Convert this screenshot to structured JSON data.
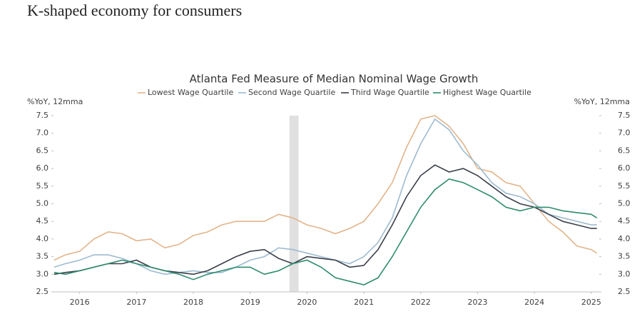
{
  "heading": "K-shaped economy for consumers",
  "chart_data": {
    "type": "line",
    "title": "Atlanta Fed Measure of Median Nominal Wage Growth",
    "ylabel": "%YoY, 12mma",
    "y2label": "%YoY, 12mma",
    "x": [
      2016.05,
      2016.25,
      2016.5,
      2016.75,
      2017.0,
      2017.25,
      2017.5,
      2017.75,
      2018.0,
      2018.25,
      2018.5,
      2018.75,
      2019.0,
      2019.25,
      2019.5,
      2019.75,
      2020.0,
      2020.25,
      2020.5,
      2020.75,
      2021.0,
      2021.25,
      2021.5,
      2021.75,
      2022.0,
      2022.25,
      2022.5,
      2022.75,
      2023.0,
      2023.25,
      2023.5,
      2023.75,
      2024.0,
      2024.25,
      2024.5,
      2024.75,
      2025.0,
      2025.25,
      2025.5,
      2025.6
    ],
    "series": [
      {
        "name": "Lowest Wage Quartile",
        "color": "#e3b48a",
        "values": [
          3.4,
          3.55,
          3.65,
          4.0,
          4.2,
          4.15,
          3.95,
          4.0,
          3.75,
          3.85,
          4.1,
          4.2,
          4.4,
          4.5,
          4.5,
          4.5,
          4.7,
          4.6,
          4.4,
          4.3,
          4.15,
          4.3,
          4.5,
          5.0,
          5.6,
          6.6,
          7.4,
          7.5,
          7.2,
          6.7,
          6.0,
          5.9,
          5.6,
          5.5,
          5.0,
          4.5,
          4.2,
          3.8,
          3.7,
          3.6
        ]
      },
      {
        "name": "Second Wage Quartile",
        "color": "#9dbbd0",
        "values": [
          3.2,
          3.3,
          3.4,
          3.55,
          3.55,
          3.45,
          3.3,
          3.1,
          3.0,
          3.05,
          3.1,
          3.05,
          3.05,
          3.2,
          3.4,
          3.5,
          3.75,
          3.7,
          3.6,
          3.5,
          3.4,
          3.3,
          3.5,
          3.9,
          4.6,
          5.8,
          6.7,
          7.4,
          7.1,
          6.5,
          6.1,
          5.6,
          5.3,
          5.2,
          5.0,
          4.7,
          4.6,
          4.5,
          4.4,
          4.4
        ]
      },
      {
        "name": "Third Wage Quartile",
        "color": "#3a3f4a",
        "values": [
          3.0,
          3.05,
          3.1,
          3.2,
          3.3,
          3.3,
          3.4,
          3.2,
          3.1,
          3.05,
          3.0,
          3.1,
          3.3,
          3.5,
          3.65,
          3.7,
          3.45,
          3.3,
          3.5,
          3.45,
          3.4,
          3.2,
          3.25,
          3.7,
          4.4,
          5.2,
          5.8,
          6.1,
          5.9,
          6.0,
          5.8,
          5.5,
          5.2,
          5.0,
          4.9,
          4.7,
          4.5,
          4.4,
          4.3,
          4.3
        ]
      },
      {
        "name": "Highest Wage Quartile",
        "color": "#2e8b6e",
        "values": [
          3.05,
          3.0,
          3.1,
          3.2,
          3.3,
          3.4,
          3.3,
          3.2,
          3.1,
          3.0,
          2.85,
          3.0,
          3.1,
          3.2,
          3.2,
          3.0,
          3.1,
          3.3,
          3.4,
          3.2,
          2.9,
          2.8,
          2.7,
          2.9,
          3.5,
          4.2,
          4.9,
          5.4,
          5.7,
          5.6,
          5.4,
          5.2,
          4.9,
          4.8,
          4.9,
          4.9,
          4.8,
          4.75,
          4.7,
          4.6
        ]
      }
    ],
    "xlim": [
      2016.04,
      2025.64
    ],
    "xticks": [
      {
        "value": 2016.5,
        "label": "2016"
      },
      {
        "value": 2017.5,
        "label": "2017"
      },
      {
        "value": 2018.5,
        "label": "2018"
      },
      {
        "value": 2019.5,
        "label": "2019"
      },
      {
        "value": 2020.5,
        "label": "2020"
      },
      {
        "value": 2021.5,
        "label": "2021"
      },
      {
        "value": 2022.5,
        "label": "2022"
      },
      {
        "value": 2023.5,
        "label": "2023"
      },
      {
        "value": 2024.5,
        "label": "2024"
      },
      {
        "value": 2025.5,
        "label": "2025"
      }
    ],
    "ylim": [
      2.5,
      7.5
    ],
    "yticks": [
      2.5,
      {
        "value": 3,
        "label": "3.0"
      },
      3.5,
      {
        "value": 4,
        "label": "4.0"
      },
      4.5,
      {
        "value": 5,
        "label": "5.0"
      },
      5.5,
      {
        "value": 6,
        "label": "6.0"
      },
      6.5,
      {
        "value": 7,
        "label": "7.0"
      },
      7.5
    ],
    "y2lim": [
      2.5,
      7.5
    ],
    "y2ticks": [
      2.5,
      {
        "value": 3,
        "label": "3.0"
      },
      3.5,
      {
        "value": 4,
        "label": "4.0"
      },
      4.5,
      {
        "value": 5,
        "label": "5.0"
      },
      5.5,
      {
        "value": 6,
        "label": "6.0"
      },
      6.5,
      {
        "value": 7,
        "label": "7.0"
      },
      7.5
    ],
    "recession_band": [
      2020.19,
      2020.35
    ],
    "recession_color": "#e0e0e0",
    "grid": false
  }
}
